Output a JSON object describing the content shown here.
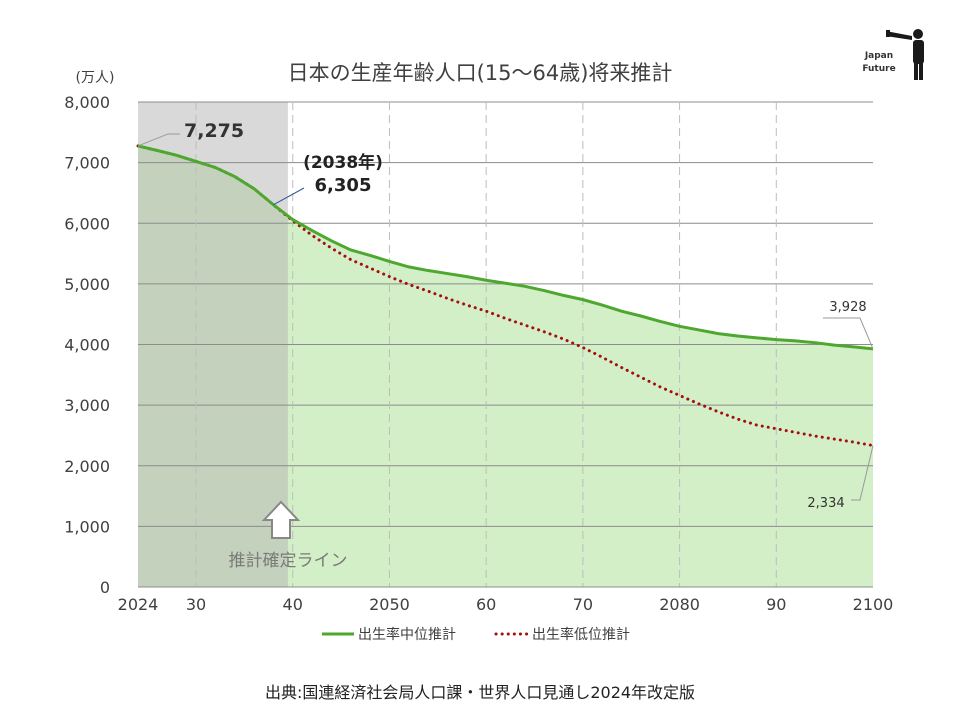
{
  "chart_data": {
    "type": "area",
    "title": "日本の生産年齢人口(15～64歳)将来推計",
    "ylabel": "(万人)",
    "xlabel": "",
    "ylim": [
      0,
      8000
    ],
    "xlim": [
      2024,
      2100
    ],
    "yticks": [
      0,
      1000,
      2000,
      3000,
      4000,
      5000,
      6000,
      7000,
      8000
    ],
    "ytick_labels": [
      "0",
      "1,000",
      "2,000",
      "3,000",
      "4,000",
      "5,000",
      "6,000",
      "7,000",
      "8,000"
    ],
    "xticks": [
      2024,
      2030,
      2040,
      2050,
      2060,
      2070,
      2080,
      2090,
      2100
    ],
    "xtick_labels": [
      "2024",
      "30",
      "40",
      "2050",
      "60",
      "70",
      "2080",
      "90",
      "2100"
    ],
    "grid": "horizontal solid, vertical dashed",
    "legend_position": "bottom",
    "series": [
      {
        "name": "出生率中位推計",
        "style": "solid",
        "color": "#4ea72e",
        "x": [
          2024,
          2026,
          2028,
          2030,
          2032,
          2034,
          2036,
          2038,
          2040,
          2042,
          2044,
          2046,
          2048,
          2050,
          2052,
          2054,
          2056,
          2058,
          2060,
          2062,
          2064,
          2066,
          2068,
          2070,
          2072,
          2074,
          2076,
          2078,
          2080,
          2082,
          2084,
          2086,
          2088,
          2090,
          2092,
          2094,
          2096,
          2098,
          2100
        ],
        "values": [
          7275,
          7200,
          7120,
          7020,
          6920,
          6770,
          6570,
          6305,
          6060,
          5880,
          5710,
          5560,
          5470,
          5370,
          5280,
          5220,
          5170,
          5120,
          5060,
          5010,
          4960,
          4890,
          4810,
          4740,
          4650,
          4550,
          4470,
          4380,
          4300,
          4240,
          4180,
          4140,
          4110,
          4080,
          4060,
          4030,
          3990,
          3960,
          3928
        ]
      },
      {
        "name": "出生率低位推計",
        "style": "dotted",
        "color": "#a50e0e",
        "x": [
          2024,
          2026,
          2028,
          2030,
          2032,
          2034,
          2036,
          2038,
          2040,
          2042,
          2044,
          2046,
          2048,
          2050,
          2052,
          2054,
          2056,
          2058,
          2060,
          2062,
          2064,
          2066,
          2068,
          2070,
          2072,
          2074,
          2076,
          2078,
          2080,
          2082,
          2084,
          2086,
          2088,
          2090,
          2092,
          2094,
          2096,
          2098,
          2100
        ],
        "values": [
          7275,
          7200,
          7120,
          7020,
          6920,
          6770,
          6570,
          6305,
          6040,
          5800,
          5590,
          5400,
          5260,
          5120,
          4990,
          4880,
          4760,
          4650,
          4550,
          4430,
          4320,
          4210,
          4090,
          3950,
          3790,
          3620,
          3460,
          3300,
          3160,
          3020,
          2890,
          2770,
          2670,
          2610,
          2550,
          2490,
          2440,
          2390,
          2334
        ]
      }
    ],
    "shaded_region": {
      "x_start": 2024,
      "x_end": 2039.5,
      "label": "推計確定ライン"
    },
    "annotations": [
      {
        "text": "7,275",
        "x": 2024,
        "y": 7275
      },
      {
        "text": "(2038年)",
        "x": 2038,
        "y": 6305
      },
      {
        "text": "6,305",
        "x": 2038,
        "y": 6305
      },
      {
        "text": "3,928",
        "x": 2100,
        "y": 3928
      },
      {
        "text": "2,334",
        "x": 2100,
        "y": 2334
      }
    ],
    "source": "出典:国連経済社会局人口課・世界人口見通し2024年改定版"
  },
  "logo": {
    "line1": "Japan",
    "line2": "Future"
  },
  "colors": {
    "area_fill": "#d3efc7",
    "shade": "#b4b4b4",
    "arrow": "#888888"
  }
}
